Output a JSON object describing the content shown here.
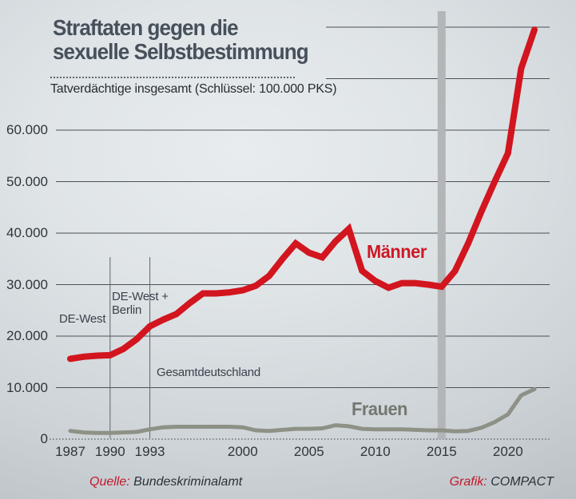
{
  "header": {
    "title_line1": "Straftaten gegen die",
    "title_line2": "sexuelle Selbstbestimmung",
    "subtitle": "Tatverdächtige insgesamt (Schlüssel: 100.000 PKS)"
  },
  "footer": {
    "source_label": "Quelle:",
    "source_value": "Bundeskriminalamt",
    "credit_label": "Grafik:",
    "credit_value": "COMPACT"
  },
  "colors": {
    "maenner_line": "#d2151e",
    "maenner_label": "#cd1a26",
    "frauen_line": "#8d9186",
    "frauen_label": "#737870",
    "grid_line": "#4d5156",
    "event_line": "#5f646a",
    "event_band": "#b3b5b7",
    "axis_dotted": "#3f444a",
    "title_text": "#47515b",
    "accent_red": "#c2182a"
  },
  "chart_data": {
    "type": "line",
    "title": "Straftaten gegen die sexuelle Selbstbestimmung",
    "subtitle": "Tatverdächtige insgesamt (Schlüssel: 100.000 PKS)",
    "ylabel": "Tatverdächtige insgesamt",
    "ylim": [
      0,
      80000
    ],
    "grid": true,
    "x": [
      1987,
      1988,
      1989,
      1990,
      1991,
      1992,
      1993,
      1994,
      1995,
      1996,
      1997,
      1998,
      1999,
      2000,
      2001,
      2002,
      2003,
      2004,
      2005,
      2006,
      2007,
      2008,
      2009,
      2010,
      2011,
      2012,
      2013,
      2014,
      2015,
      2016,
      2017,
      2018,
      2019,
      2020,
      2021,
      2022
    ],
    "series": [
      {
        "name": "Männer",
        "color": "#d2151e",
        "values": [
          15600,
          16000,
          16200,
          16300,
          17500,
          19400,
          21900,
          23200,
          24300,
          26400,
          28300,
          28300,
          28500,
          28900,
          29800,
          31700,
          35000,
          38000,
          36200,
          35300,
          38400,
          40800,
          32700,
          30700,
          29400,
          30300,
          30300,
          30000,
          29600,
          32600,
          38000,
          44200,
          50000,
          55500,
          72000,
          79500
        ]
      },
      {
        "name": "Frauen",
        "color": "#8d9186",
        "values": [
          1600,
          1300,
          1200,
          1200,
          1300,
          1400,
          1900,
          2300,
          2400,
          2400,
          2400,
          2400,
          2400,
          2300,
          1700,
          1600,
          1800,
          2000,
          2000,
          2100,
          2700,
          2500,
          2000,
          1900,
          1900,
          1900,
          1800,
          1700,
          1700,
          1500,
          1600,
          2200,
          3300,
          4800,
          8500,
          9700
        ]
      }
    ],
    "y_ticks": [
      {
        "value": 0,
        "label": "0"
      },
      {
        "value": 10000,
        "label": "10.000"
      },
      {
        "value": 20000,
        "label": "20.000"
      },
      {
        "value": 30000,
        "label": "30.000"
      },
      {
        "value": 40000,
        "label": "40.000"
      },
      {
        "value": 50000,
        "label": "50.000"
      },
      {
        "value": 60000,
        "label": "60.000"
      },
      {
        "value": 70000,
        "label": ""
      },
      {
        "value": 80000,
        "label": ""
      }
    ],
    "x_ticks": [
      {
        "year": 1987,
        "label": "1987"
      },
      {
        "year": 1990,
        "label": "1990"
      },
      {
        "year": 1993,
        "label": "1993"
      },
      {
        "year": 2000,
        "label": "2000"
      },
      {
        "year": 2005,
        "label": "2005"
      },
      {
        "year": 2010,
        "label": "2010"
      },
      {
        "year": 2015,
        "label": "2015"
      },
      {
        "year": 2020,
        "label": "2020"
      }
    ],
    "annotations": [
      {
        "text_lines": [
          "DE-West"
        ],
        "line_year": null
      },
      {
        "text_lines": [
          "DE-West +",
          "Berlin"
        ],
        "line_year": 1990
      },
      {
        "text_lines": [
          "Gesamtdeutschland"
        ],
        "line_year": 1993
      }
    ],
    "event_band_year": 2015
  }
}
